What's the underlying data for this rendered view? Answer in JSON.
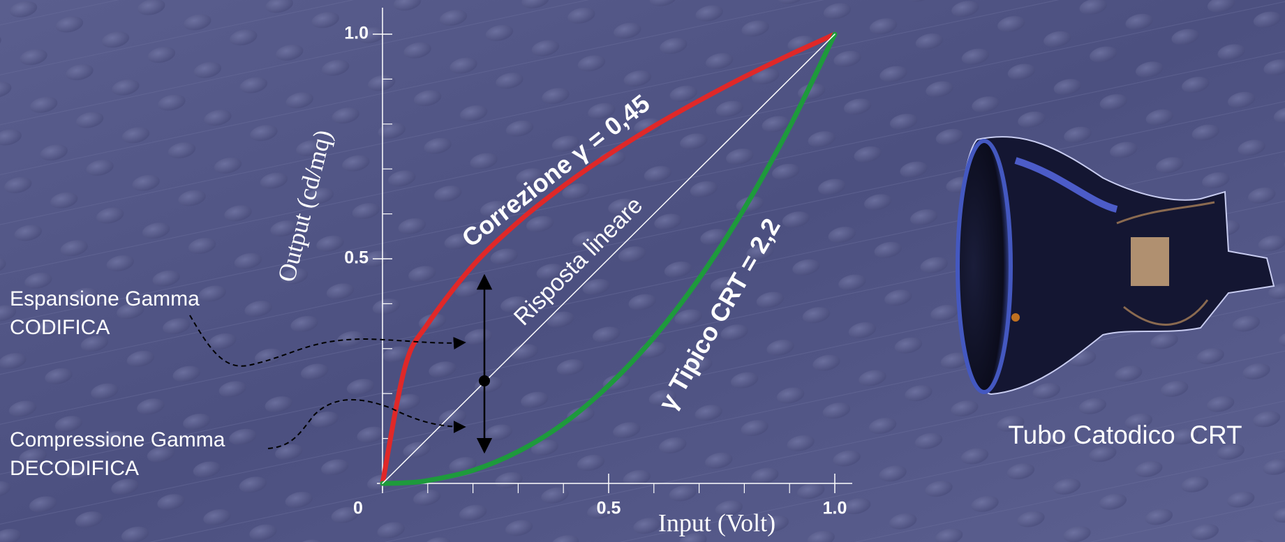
{
  "chart_data": {
    "type": "line",
    "x_label": "Input (Volt)",
    "y_label": "Output (cd/mq)",
    "x": [
      0,
      0.05,
      0.1,
      0.2,
      0.3,
      0.4,
      0.5,
      0.6,
      0.7,
      0.8,
      0.9,
      1.0
    ],
    "series": [
      {
        "name": "Correzione γ = 0,45",
        "color": "#e02828",
        "values": [
          0,
          0.26,
          0.355,
          0.485,
          0.582,
          0.662,
          0.732,
          0.795,
          0.852,
          0.905,
          0.954,
          1.0
        ]
      },
      {
        "name": "γ Tipico CRT = 2,2",
        "color": "#1e9a3c",
        "values": [
          0,
          0.0014,
          0.0063,
          0.029,
          0.071,
          0.133,
          0.218,
          0.325,
          0.456,
          0.612,
          0.793,
          1.0
        ]
      },
      {
        "name": "Risposta lineare",
        "color": "#ffffff",
        "values": [
          0,
          0.05,
          0.1,
          0.2,
          0.3,
          0.4,
          0.5,
          0.6,
          0.7,
          0.8,
          0.9,
          1.0
        ]
      }
    ],
    "xlim": [
      0,
      1
    ],
    "ylim": [
      0,
      1
    ],
    "xticks": [
      0,
      0.5,
      {
        "value": 1,
        "label": "1.0"
      }
    ],
    "yticks": [
      0.5,
      {
        "value": 1,
        "label": "1.0"
      }
    ],
    "x_minor_ticks": [
      0.1,
      0.2,
      0.3,
      0.4,
      0.6,
      0.7,
      0.8,
      0.9
    ],
    "y_minor_ticks": [
      0.1,
      0.2,
      0.3,
      0.4,
      0.6,
      0.7,
      0.8,
      0.9
    ],
    "annotations": [
      "Espansione Gamma",
      "CODIFICA",
      "Compressione Gamma",
      "DECODIFICA",
      "Tubo Catodico  CRT"
    ]
  }
}
